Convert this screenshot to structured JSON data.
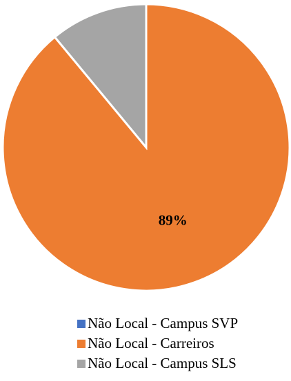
{
  "chart_data": {
    "type": "pie",
    "categories": [
      "Não Local - Campus SVP",
      "Não Local - Carreiros",
      "Não Local - Campus SLS"
    ],
    "values": [
      0,
      89,
      11
    ],
    "value_labels": [
      null,
      "89%",
      null
    ],
    "colors": [
      "#4472c4",
      "#ed7d31",
      "#a5a5a5"
    ],
    "legend": "bottom"
  }
}
